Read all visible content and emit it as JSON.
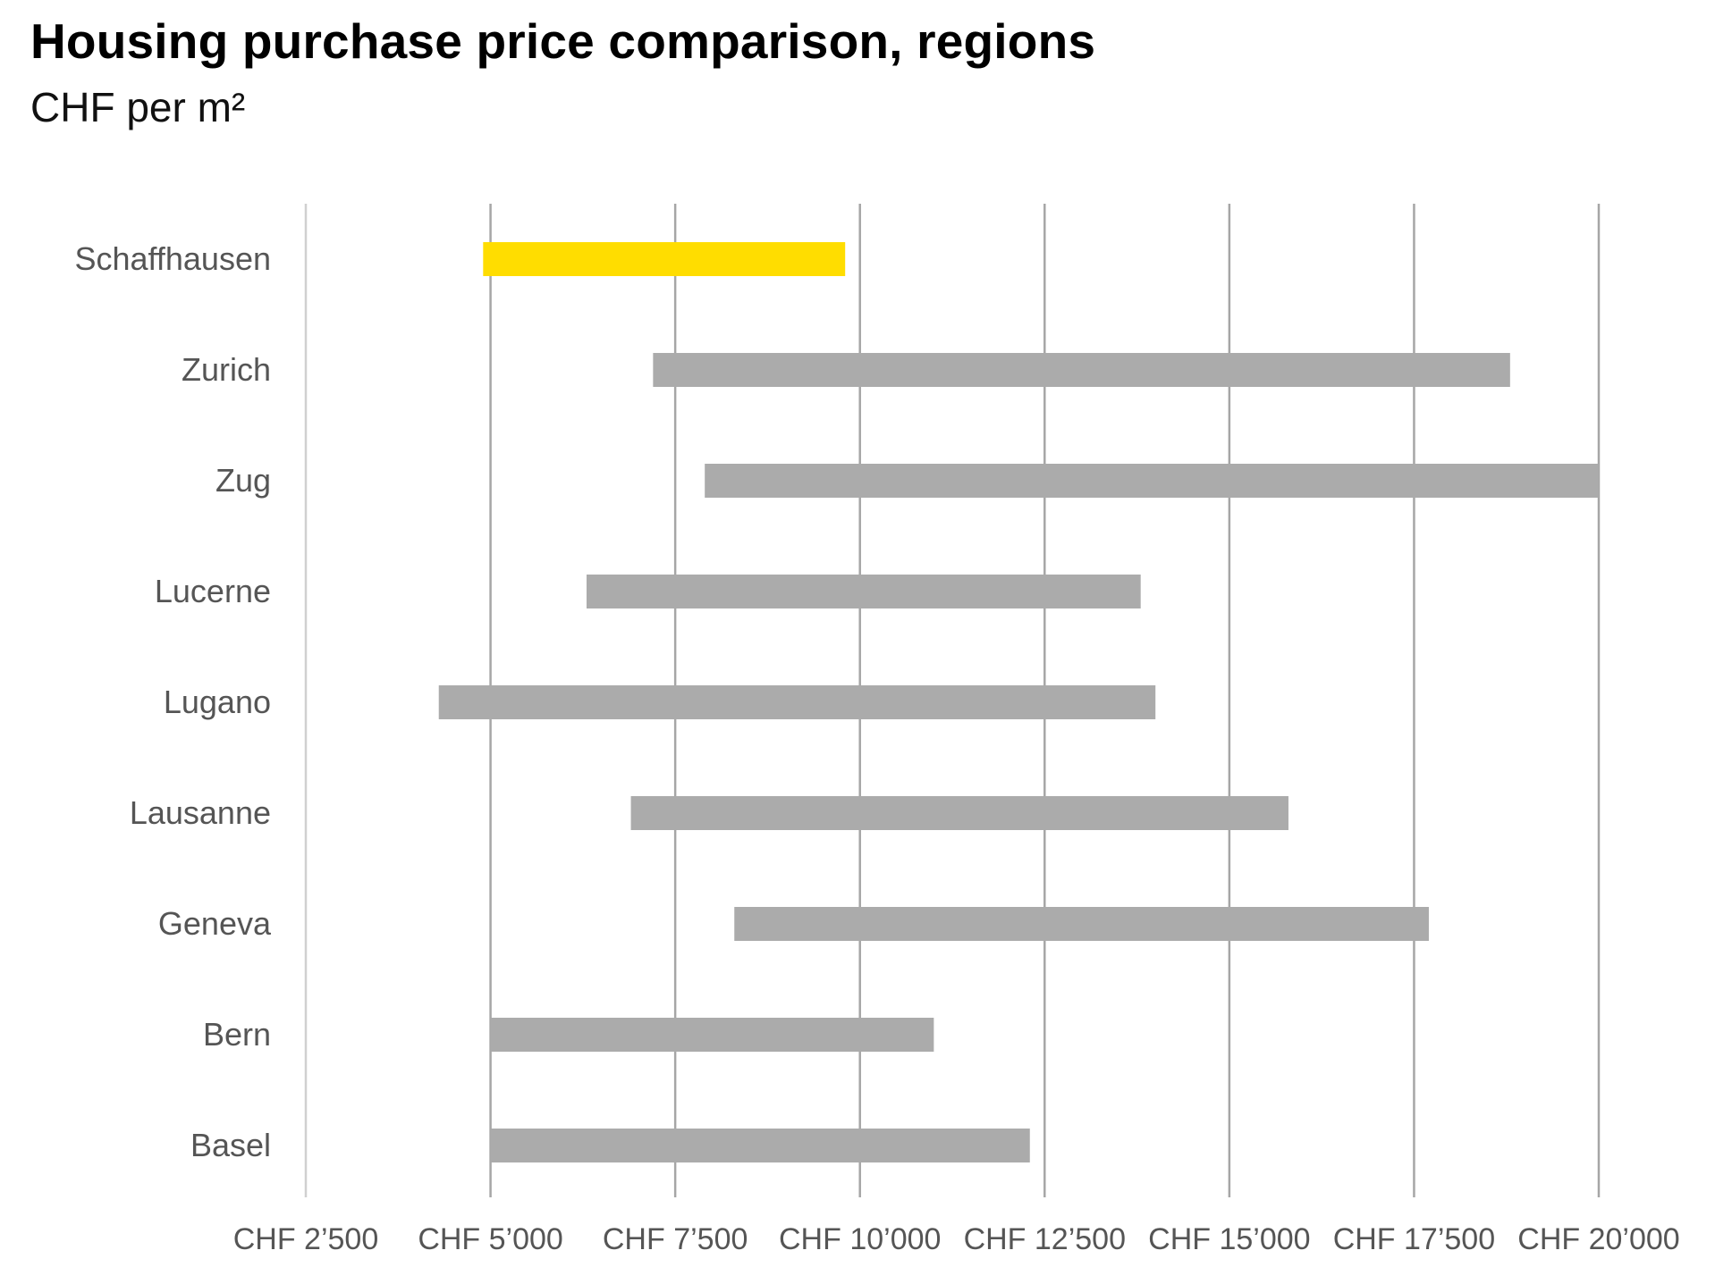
{
  "chart_data": {
    "type": "bar",
    "subtype": "floating-range",
    "orientation": "horizontal",
    "title": "Housing purchase price comparison, regions",
    "subtitle": "CHF per m²",
    "xlabel": "",
    "ylabel": "",
    "xlim": [
      2500,
      20000
    ],
    "x_ticks": [
      2500,
      5000,
      7500,
      10000,
      12500,
      15000,
      17500,
      20000
    ],
    "x_tick_labels": [
      "CHF 2’500",
      "CHF 5’000",
      "CHF 7’500",
      "CHF 10’000",
      "CHF 12’500",
      "CHF 15’000",
      "CHF 17’500",
      "CHF 20’000"
    ],
    "grid": "vertical",
    "legend": "none",
    "categories": [
      "Schaffhausen",
      "Zurich",
      "Zug",
      "Lucerne",
      "Lugano",
      "Lausanne",
      "Geneva",
      "Bern",
      "Basel"
    ],
    "ranges": [
      {
        "category": "Schaffhausen",
        "low": 4900,
        "high": 9800,
        "color": "#FFDD00"
      },
      {
        "category": "Zurich",
        "low": 7200,
        "high": 18800,
        "color": "#ABABAB"
      },
      {
        "category": "Zug",
        "low": 7900,
        "high": 20000,
        "color": "#ABABAB"
      },
      {
        "category": "Lucerne",
        "low": 6300,
        "high": 13800,
        "color": "#ABABAB"
      },
      {
        "category": "Lugano",
        "low": 4300,
        "high": 14000,
        "color": "#ABABAB"
      },
      {
        "category": "Lausanne",
        "low": 6900,
        "high": 15800,
        "color": "#ABABAB"
      },
      {
        "category": "Geneva",
        "low": 8300,
        "high": 17700,
        "color": "#ABABAB"
      },
      {
        "category": "Bern",
        "low": 5000,
        "high": 11000,
        "color": "#ABABAB"
      },
      {
        "category": "Basel",
        "low": 5000,
        "high": 12300,
        "color": "#ABABAB"
      }
    ],
    "colors": {
      "highlight": "#FFDD00",
      "bar": "#ABABAB",
      "grid": "#A6A6A6",
      "label": "#555555"
    }
  }
}
